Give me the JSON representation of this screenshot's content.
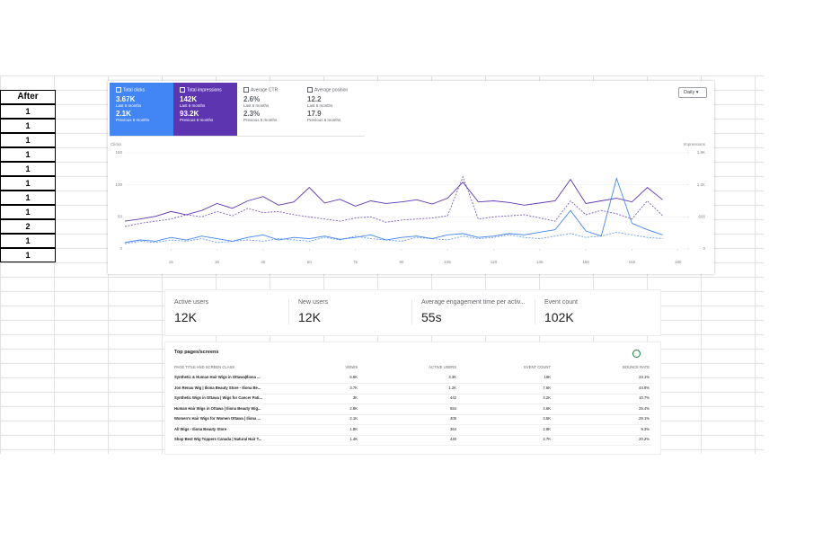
{
  "sheet": {
    "column_header": "After",
    "column_values": [
      1,
      1,
      1,
      1,
      1,
      1,
      1,
      1,
      2,
      1,
      1
    ]
  },
  "search_console": {
    "tiles": [
      {
        "label": "Total clicks",
        "value": "3.67K",
        "period": "Last 6 months",
        "previous": "2.1K",
        "previous_period": "Previous 6 months"
      },
      {
        "label": "Total impressions",
        "value": "142K",
        "period": "Last 6 months",
        "previous": "93.2K",
        "previous_period": "Previous 6 months"
      },
      {
        "label": "Average CTR",
        "value": "2.6%",
        "period": "Last 6 months",
        "previous": "2.3%",
        "previous_period": "Previous 6 months"
      },
      {
        "label": "Average position",
        "value": "12.2",
        "period": "Last 6 months",
        "previous": "17.9",
        "previous_period": "Previous 6 months"
      }
    ],
    "range_select": "Daily"
  },
  "chart_data": {
    "type": "line",
    "y_label": "Clicks",
    "y2_label": "Impressions",
    "x": [
      0,
      5,
      10,
      15,
      20,
      25,
      30,
      35,
      40,
      45,
      50,
      55,
      60,
      65,
      70,
      75,
      80,
      85,
      90,
      95,
      100,
      105,
      110,
      115,
      120,
      125,
      130,
      135,
      140,
      145,
      150,
      155,
      160,
      165,
      170,
      175
    ],
    "xlim": [
      0,
      183
    ],
    "xticks": [
      15,
      30,
      45,
      60,
      75,
      90,
      105,
      120,
      135,
      150,
      165,
      180
    ],
    "ylim": [
      0,
      150
    ],
    "yticks": [
      0,
      50,
      100,
      150
    ],
    "y2lim": [
      0,
      1800
    ],
    "y2ticks": [
      0,
      600,
      {
        "value": 1200,
        "label": "1.2K"
      },
      {
        "value": 1800,
        "label": "1.8K"
      }
    ],
    "grid": true,
    "series": [
      {
        "color": "#5e35b1",
        "axis": "y2",
        "dashed": false,
        "values": [
          520,
          560,
          610,
          700,
          640,
          720,
          850,
          760,
          900,
          980,
          820,
          880,
          1150,
          860,
          930,
          800,
          900,
          850,
          880,
          920,
          840,
          950,
          1250,
          880,
          900,
          870,
          820,
          860,
          900,
          1300,
          850,
          900,
          950,
          880,
          1150,
          920
        ]
      },
      {
        "color": "#5e35b1",
        "axis": "y2",
        "dashed": true,
        "values": [
          420,
          480,
          520,
          560,
          640,
          600,
          700,
          620,
          760,
          680,
          700,
          640,
          600,
          560,
          520,
          580,
          600,
          500,
          540,
          560,
          580,
          620,
          1350,
          560,
          600,
          620,
          640,
          580,
          520,
          900,
          640,
          720,
          660,
          560,
          900,
          620
        ]
      },
      {
        "color": "#4285f4",
        "dashed": false,
        "values": [
          10,
          14,
          12,
          18,
          14,
          20,
          16,
          12,
          18,
          22,
          14,
          18,
          16,
          20,
          15,
          18,
          22,
          14,
          18,
          20,
          16,
          22,
          24,
          18,
          20,
          24,
          22,
          26,
          30,
          60,
          28,
          20,
          110,
          40,
          30,
          22
        ]
      },
      {
        "color": "#4285f4",
        "dashed": true,
        "values": [
          8,
          12,
          10,
          14,
          12,
          16,
          10,
          12,
          14,
          12,
          16,
          14,
          12,
          18,
          14,
          20,
          16,
          14,
          12,
          18,
          16,
          14,
          20,
          16,
          18,
          22,
          18,
          16,
          20,
          24,
          18,
          20,
          26,
          22,
          18,
          16
        ]
      }
    ]
  },
  "analytics": {
    "metrics": [
      {
        "label": "Active users",
        "value": "12K"
      },
      {
        "label": "New users",
        "value": "12K"
      },
      {
        "label": "Average engagement time per activ...",
        "value": "55s"
      },
      {
        "label": "Event count",
        "value": "102K"
      }
    ],
    "top_pages": {
      "title": "Top pages/screens",
      "headers": [
        "PAGE TITLE AND SCREEN CLASS",
        "VIEWS",
        "ACTIVE USERS",
        "EVENT COUNT",
        "BOUNCE RATE"
      ],
      "rows": [
        [
          "Synthetic & Human Hair Wigs in Ottawa|Iliona ...",
          "5.8K",
          "3.3K",
          "19K",
          "33.1%"
        ],
        [
          "Jon Renau Wig | Iliona Beauty Store - Iliona Be...",
          "3.7K",
          "1.2K",
          "7.6K",
          "44.6%"
        ],
        [
          "Synthetic Wigs in Ottawa | Wigs for Cancer Pati...",
          "3K",
          "442",
          "4.2K",
          "10.7%"
        ],
        [
          "Human Hair Wigs in Ottawa | Iliona Beauty Wig...",
          "2.8K",
          "684",
          "4.6K",
          "25.4%"
        ],
        [
          "Women's Hair Wigs for Women Ottawa | Iliona ...",
          "2.1K",
          "405",
          "3.5K",
          "29.1%"
        ],
        [
          "All Wigs - Iliona Beauty Store",
          "1.8K",
          "364",
          "2.8K",
          "9.3%"
        ],
        [
          "Shop Best Wig Toppers Canada | Natural Hair T...",
          "1.4K",
          "440",
          "2.7K",
          "20.2%"
        ]
      ]
    }
  }
}
